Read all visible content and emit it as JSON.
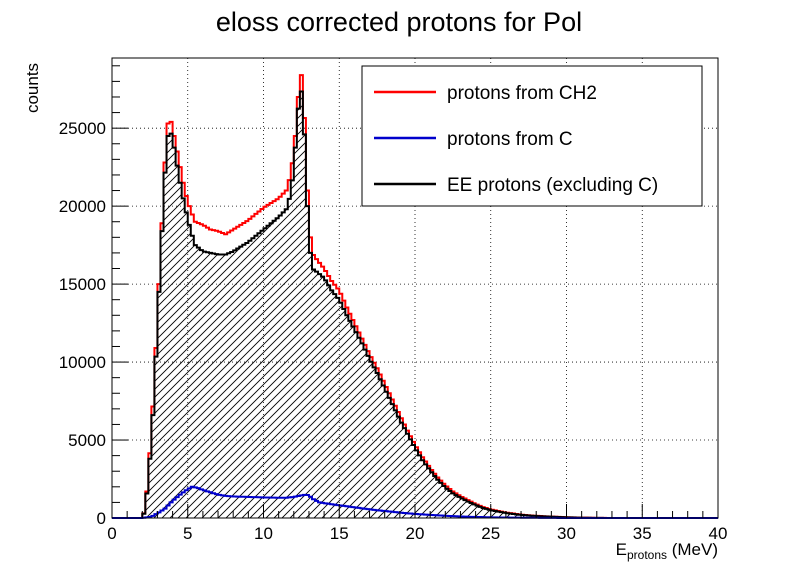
{
  "chart_data": {
    "type": "histogram",
    "title": "eloss corrected protons for Pol",
    "xlabel": "E",
    "xlabel_subscript": "protons",
    "xlabel_unit": " (MeV)",
    "ylabel": "counts",
    "xlim": [
      0,
      40
    ],
    "ylim": [
      0,
      29500
    ],
    "x_ticks": [
      0,
      5,
      10,
      15,
      20,
      25,
      30,
      35,
      40
    ],
    "y_ticks": [
      0,
      5000,
      10000,
      15000,
      20000,
      25000
    ],
    "grid": true,
    "legend_position": "top-right",
    "series": [
      {
        "name": "protons from CH2",
        "color": "#ff0000",
        "points": [
          [
            1.5,
            0
          ],
          [
            2.0,
            0
          ],
          [
            2.2,
            600
          ],
          [
            2.4,
            2800
          ],
          [
            2.6,
            5500
          ],
          [
            2.8,
            8800
          ],
          [
            3.0,
            13000
          ],
          [
            3.2,
            17000
          ],
          [
            3.4,
            20800
          ],
          [
            3.6,
            24800
          ],
          [
            3.8,
            25800
          ],
          [
            4.0,
            25000
          ],
          [
            4.2,
            24000
          ],
          [
            4.4,
            23000
          ],
          [
            4.6,
            22000
          ],
          [
            4.8,
            21000
          ],
          [
            5.0,
            20300
          ],
          [
            5.2,
            19700
          ],
          [
            5.5,
            19000
          ],
          [
            6.0,
            18800
          ],
          [
            6.5,
            18500
          ],
          [
            7.0,
            18400
          ],
          [
            7.5,
            18200
          ],
          [
            8.0,
            18500
          ],
          [
            8.5,
            18800
          ],
          [
            9.0,
            19100
          ],
          [
            9.5,
            19500
          ],
          [
            10.0,
            19900
          ],
          [
            10.5,
            20200
          ],
          [
            11.0,
            20500
          ],
          [
            11.5,
            21000
          ],
          [
            11.8,
            22000
          ],
          [
            12.0,
            23500
          ],
          [
            12.2,
            25500
          ],
          [
            12.4,
            28500
          ],
          [
            12.6,
            28300
          ],
          [
            12.8,
            23000
          ],
          [
            13.0,
            19000
          ],
          [
            13.2,
            17000
          ],
          [
            13.5,
            16600
          ],
          [
            14.0,
            16000
          ],
          [
            14.5,
            15200
          ],
          [
            15.0,
            14600
          ],
          [
            15.5,
            13500
          ],
          [
            16.0,
            12500
          ],
          [
            16.5,
            11500
          ],
          [
            17.0,
            10500
          ],
          [
            17.5,
            9600
          ],
          [
            18.0,
            8600
          ],
          [
            18.5,
            7600
          ],
          [
            19.0,
            6600
          ],
          [
            19.5,
            5600
          ],
          [
            20.0,
            4700
          ],
          [
            20.5,
            3900
          ],
          [
            21.0,
            3200
          ],
          [
            21.5,
            2600
          ],
          [
            22.0,
            2100
          ],
          [
            22.5,
            1700
          ],
          [
            23.0,
            1400
          ],
          [
            23.5,
            1150
          ],
          [
            24.0,
            900
          ],
          [
            24.5,
            700
          ],
          [
            25.0,
            550
          ],
          [
            26.0,
            350
          ],
          [
            27.0,
            220
          ],
          [
            28.0,
            140
          ],
          [
            29.0,
            90
          ],
          [
            30.0,
            50
          ],
          [
            31.0,
            25
          ],
          [
            32.0,
            10
          ],
          [
            33.0,
            0
          ],
          [
            40.0,
            0
          ]
        ]
      },
      {
        "name": "protons from C",
        "color": "#0000cc",
        "points": [
          [
            2.0,
            0
          ],
          [
            2.6,
            80
          ],
          [
            3.0,
            300
          ],
          [
            3.5,
            600
          ],
          [
            4.0,
            1100
          ],
          [
            4.5,
            1500
          ],
          [
            5.0,
            1850
          ],
          [
            5.3,
            2000
          ],
          [
            5.6,
            1950
          ],
          [
            6.0,
            1800
          ],
          [
            6.5,
            1650
          ],
          [
            7.0,
            1500
          ],
          [
            7.5,
            1420
          ],
          [
            8.0,
            1380
          ],
          [
            9.0,
            1350
          ],
          [
            10.0,
            1320
          ],
          [
            11.0,
            1300
          ],
          [
            11.5,
            1300
          ],
          [
            12.0,
            1350
          ],
          [
            12.5,
            1450
          ],
          [
            12.8,
            1500
          ],
          [
            13.0,
            1450
          ],
          [
            13.3,
            1200
          ],
          [
            13.7,
            1000
          ],
          [
            14.5,
            880
          ],
          [
            15.5,
            750
          ],
          [
            16.5,
            620
          ],
          [
            17.5,
            500
          ],
          [
            18.5,
            400
          ],
          [
            19.5,
            300
          ],
          [
            20.5,
            230
          ],
          [
            21.5,
            170
          ],
          [
            22.5,
            120
          ],
          [
            23.5,
            80
          ],
          [
            24.5,
            55
          ],
          [
            25.5,
            35
          ],
          [
            27.0,
            20
          ],
          [
            28.5,
            10
          ],
          [
            30.0,
            0
          ],
          [
            40.0,
            0
          ]
        ]
      },
      {
        "name": "EE protons (excluding C)",
        "color": "#000000",
        "points": [
          [
            1.5,
            0
          ],
          [
            2.0,
            0
          ],
          [
            2.2,
            550
          ],
          [
            2.4,
            2600
          ],
          [
            2.6,
            5000
          ],
          [
            2.8,
            8200
          ],
          [
            3.0,
            12500
          ],
          [
            3.2,
            16500
          ],
          [
            3.4,
            20300
          ],
          [
            3.6,
            24000
          ],
          [
            3.8,
            25000
          ],
          [
            4.0,
            24300
          ],
          [
            4.2,
            23200
          ],
          [
            4.4,
            22000
          ],
          [
            4.6,
            21000
          ],
          [
            4.8,
            20000
          ],
          [
            5.0,
            19200
          ],
          [
            5.2,
            18400
          ],
          [
            5.5,
            17500
          ],
          [
            6.0,
            17100
          ],
          [
            6.5,
            17000
          ],
          [
            7.0,
            16900
          ],
          [
            7.5,
            16900
          ],
          [
            8.0,
            17100
          ],
          [
            8.5,
            17400
          ],
          [
            9.0,
            17700
          ],
          [
            9.5,
            18100
          ],
          [
            10.0,
            18500
          ],
          [
            10.5,
            18900
          ],
          [
            11.0,
            19300
          ],
          [
            11.5,
            19800
          ],
          [
            11.8,
            20800
          ],
          [
            12.0,
            22500
          ],
          [
            12.2,
            25000
          ],
          [
            12.4,
            27500
          ],
          [
            12.6,
            27200
          ],
          [
            12.8,
            22000
          ],
          [
            13.0,
            18000
          ],
          [
            13.2,
            16000
          ],
          [
            13.5,
            15800
          ],
          [
            14.0,
            15400
          ],
          [
            14.5,
            14600
          ],
          [
            15.0,
            14000
          ],
          [
            15.5,
            13000
          ],
          [
            16.0,
            12100
          ],
          [
            16.5,
            11200
          ],
          [
            17.0,
            10200
          ],
          [
            17.5,
            9300
          ],
          [
            18.0,
            8300
          ],
          [
            18.5,
            7300
          ],
          [
            19.0,
            6300
          ],
          [
            19.5,
            5400
          ],
          [
            20.0,
            4500
          ],
          [
            20.5,
            3700
          ],
          [
            21.0,
            3050
          ],
          [
            21.5,
            2450
          ],
          [
            22.0,
            1950
          ],
          [
            22.5,
            1580
          ],
          [
            23.0,
            1300
          ],
          [
            23.5,
            1050
          ],
          [
            24.0,
            830
          ],
          [
            24.5,
            640
          ],
          [
            25.0,
            500
          ],
          [
            26.0,
            320
          ],
          [
            27.0,
            200
          ],
          [
            28.0,
            125
          ],
          [
            29.0,
            80
          ],
          [
            30.0,
            45
          ],
          [
            31.0,
            20
          ],
          [
            32.0,
            8
          ],
          [
            33.0,
            0
          ],
          [
            40.0,
            0
          ]
        ]
      }
    ]
  }
}
